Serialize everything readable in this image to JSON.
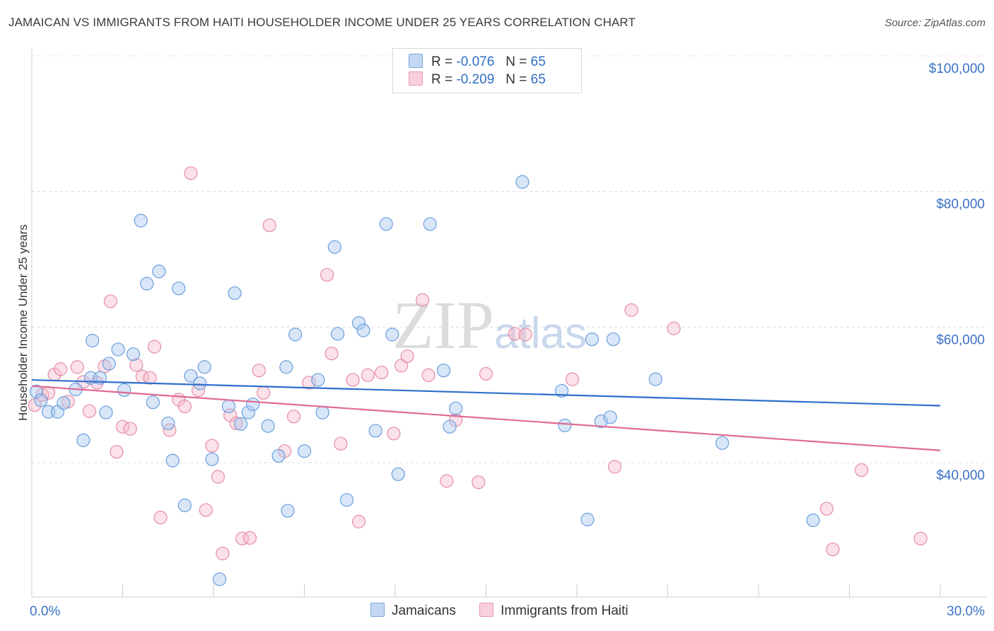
{
  "header": {
    "title": "JAMAICAN VS IMMIGRANTS FROM HAITI HOUSEHOLDER INCOME UNDER 25 YEARS CORRELATION CHART",
    "source": "Source: ZipAtlas.com"
  },
  "watermark": {
    "part1": "ZIP",
    "part2": "atlas"
  },
  "legend": {
    "rows": [
      {
        "r_label": "R =",
        "r_value": "-0.076",
        "n_label": "N =",
        "n_value": "65"
      },
      {
        "r_label": "R =",
        "r_value": "-0.209",
        "n_label": "N =",
        "n_value": "65"
      }
    ]
  },
  "colors": {
    "blue_fill": "#a9c8ef",
    "blue_stroke": "#6a9edc",
    "blue_line": "#2e6fcb",
    "pink_fill": "#f6bccd",
    "pink_stroke": "#e48ca8",
    "pink_line": "#e06a93",
    "tick_text": "#3a72c6"
  },
  "chart_data": {
    "type": "scatter",
    "title": "JAMAICAN VS IMMIGRANTS FROM HAITI HOUSEHOLDER INCOME UNDER 25 YEARS CORRELATION CHART",
    "xlabel": "",
    "ylabel": "Householder Income Under 25 years",
    "xlim": [
      0,
      30
    ],
    "ylim": [
      20000,
      104000
    ],
    "x_tick_labels": [
      "0.0%",
      "30.0%"
    ],
    "y_ticks": [
      40000,
      60000,
      80000,
      100000
    ],
    "y_tick_labels": [
      "$40,000",
      "$60,000",
      "$80,000",
      "$100,000"
    ],
    "grid": true,
    "legend_position": "top-center",
    "series": [
      {
        "name": "Jamaicans",
        "color": "#a9c8ef",
        "trend": {
          "x": [
            0,
            30
          ],
          "y": [
            52200,
            48400
          ]
        },
        "points": [
          {
            "x": 0.15,
            "y": 50500
          },
          {
            "x": 0.3,
            "y": 49200
          },
          {
            "x": 0.55,
            "y": 47500
          },
          {
            "x": 0.85,
            "y": 47500
          },
          {
            "x": 1.05,
            "y": 48800
          },
          {
            "x": 1.45,
            "y": 50800
          },
          {
            "x": 1.7,
            "y": 43300
          },
          {
            "x": 1.95,
            "y": 52500
          },
          {
            "x": 2.0,
            "y": 58000
          },
          {
            "x": 2.25,
            "y": 52500
          },
          {
            "x": 2.45,
            "y": 47400
          },
          {
            "x": 2.55,
            "y": 54600
          },
          {
            "x": 2.85,
            "y": 56700
          },
          {
            "x": 3.05,
            "y": 50700
          },
          {
            "x": 3.35,
            "y": 56000
          },
          {
            "x": 3.6,
            "y": 75700
          },
          {
            "x": 3.8,
            "y": 66400
          },
          {
            "x": 4.0,
            "y": 48900
          },
          {
            "x": 4.2,
            "y": 68200
          },
          {
            "x": 4.5,
            "y": 45800
          },
          {
            "x": 4.65,
            "y": 40300
          },
          {
            "x": 4.85,
            "y": 65700
          },
          {
            "x": 5.05,
            "y": 33700
          },
          {
            "x": 5.25,
            "y": 52800
          },
          {
            "x": 5.55,
            "y": 51700
          },
          {
            "x": 5.7,
            "y": 54100
          },
          {
            "x": 5.95,
            "y": 40500
          },
          {
            "x": 6.2,
            "y": 22800
          },
          {
            "x": 6.5,
            "y": 48300
          },
          {
            "x": 6.7,
            "y": 65000
          },
          {
            "x": 6.9,
            "y": 45700
          },
          {
            "x": 7.15,
            "y": 47400
          },
          {
            "x": 7.3,
            "y": 48600
          },
          {
            "x": 7.8,
            "y": 45400
          },
          {
            "x": 8.15,
            "y": 41000
          },
          {
            "x": 8.4,
            "y": 54100
          },
          {
            "x": 8.45,
            "y": 32900
          },
          {
            "x": 8.7,
            "y": 58900
          },
          {
            "x": 9.0,
            "y": 41700
          },
          {
            "x": 9.45,
            "y": 52200
          },
          {
            "x": 9.6,
            "y": 47400
          },
          {
            "x": 10.0,
            "y": 71800
          },
          {
            "x": 10.1,
            "y": 59000
          },
          {
            "x": 10.4,
            "y": 34500
          },
          {
            "x": 10.8,
            "y": 60600
          },
          {
            "x": 10.95,
            "y": 59500
          },
          {
            "x": 11.35,
            "y": 44700
          },
          {
            "x": 11.7,
            "y": 75200
          },
          {
            "x": 11.9,
            "y": 58900
          },
          {
            "x": 12.1,
            "y": 38300
          },
          {
            "x": 13.15,
            "y": 75200
          },
          {
            "x": 13.6,
            "y": 53600
          },
          {
            "x": 13.8,
            "y": 45300
          },
          {
            "x": 14.0,
            "y": 48000
          },
          {
            "x": 16.2,
            "y": 81400
          },
          {
            "x": 17.5,
            "y": 50600
          },
          {
            "x": 17.6,
            "y": 45500
          },
          {
            "x": 18.35,
            "y": 31600
          },
          {
            "x": 18.5,
            "y": 58200
          },
          {
            "x": 18.8,
            "y": 46100
          },
          {
            "x": 19.1,
            "y": 46700
          },
          {
            "x": 19.2,
            "y": 58200
          },
          {
            "x": 20.6,
            "y": 52300
          },
          {
            "x": 22.8,
            "y": 42900
          },
          {
            "x": 25.8,
            "y": 31500
          }
        ]
      },
      {
        "name": "Immigrants from Haiti",
        "color": "#f6bccd",
        "trend": {
          "x": [
            0,
            30
          ],
          "y": [
            51300,
            41800
          ]
        },
        "points": [
          {
            "x": 0.1,
            "y": 48500
          },
          {
            "x": 0.35,
            "y": 50000
          },
          {
            "x": 0.55,
            "y": 50300
          },
          {
            "x": 0.75,
            "y": 53000
          },
          {
            "x": 0.95,
            "y": 53800
          },
          {
            "x": 1.2,
            "y": 49000
          },
          {
            "x": 1.5,
            "y": 54100
          },
          {
            "x": 1.7,
            "y": 51900
          },
          {
            "x": 1.9,
            "y": 47600
          },
          {
            "x": 2.15,
            "y": 51800
          },
          {
            "x": 2.4,
            "y": 54200
          },
          {
            "x": 2.6,
            "y": 63800
          },
          {
            "x": 2.8,
            "y": 41600
          },
          {
            "x": 3.0,
            "y": 45300
          },
          {
            "x": 3.25,
            "y": 45000
          },
          {
            "x": 3.45,
            "y": 54400
          },
          {
            "x": 3.65,
            "y": 52700
          },
          {
            "x": 3.9,
            "y": 52500
          },
          {
            "x": 4.05,
            "y": 57100
          },
          {
            "x": 4.25,
            "y": 31900
          },
          {
            "x": 4.55,
            "y": 44800
          },
          {
            "x": 4.85,
            "y": 49300
          },
          {
            "x": 5.05,
            "y": 48300
          },
          {
            "x": 5.25,
            "y": 82700
          },
          {
            "x": 5.5,
            "y": 50700
          },
          {
            "x": 5.75,
            "y": 33000
          },
          {
            "x": 5.95,
            "y": 42500
          },
          {
            "x": 6.15,
            "y": 37900
          },
          {
            "x": 6.3,
            "y": 26600
          },
          {
            "x": 6.55,
            "y": 47000
          },
          {
            "x": 6.75,
            "y": 45800
          },
          {
            "x": 6.95,
            "y": 28800
          },
          {
            "x": 7.2,
            "y": 28900
          },
          {
            "x": 7.5,
            "y": 53600
          },
          {
            "x": 7.65,
            "y": 50300
          },
          {
            "x": 7.85,
            "y": 75000
          },
          {
            "x": 8.35,
            "y": 41700
          },
          {
            "x": 8.65,
            "y": 46800
          },
          {
            "x": 9.15,
            "y": 51800
          },
          {
            "x": 9.75,
            "y": 67700
          },
          {
            "x": 9.9,
            "y": 56100
          },
          {
            "x": 10.2,
            "y": 42800
          },
          {
            "x": 10.6,
            "y": 52200
          },
          {
            "x": 10.8,
            "y": 31300
          },
          {
            "x": 11.1,
            "y": 52900
          },
          {
            "x": 11.55,
            "y": 53300
          },
          {
            "x": 11.95,
            "y": 44300
          },
          {
            "x": 12.2,
            "y": 54300
          },
          {
            "x": 12.4,
            "y": 55700
          },
          {
            "x": 12.9,
            "y": 64000
          },
          {
            "x": 13.1,
            "y": 52900
          },
          {
            "x": 13.7,
            "y": 37300
          },
          {
            "x": 14.0,
            "y": 46300
          },
          {
            "x": 14.75,
            "y": 37100
          },
          {
            "x": 15.0,
            "y": 53100
          },
          {
            "x": 15.95,
            "y": 59000
          },
          {
            "x": 16.3,
            "y": 58900
          },
          {
            "x": 17.85,
            "y": 52300
          },
          {
            "x": 19.25,
            "y": 39400
          },
          {
            "x": 19.8,
            "y": 62500
          },
          {
            "x": 21.2,
            "y": 59800
          },
          {
            "x": 26.25,
            "y": 33200
          },
          {
            "x": 26.45,
            "y": 27200
          },
          {
            "x": 27.4,
            "y": 38900
          },
          {
            "x": 29.35,
            "y": 28800
          }
        ]
      }
    ]
  }
}
